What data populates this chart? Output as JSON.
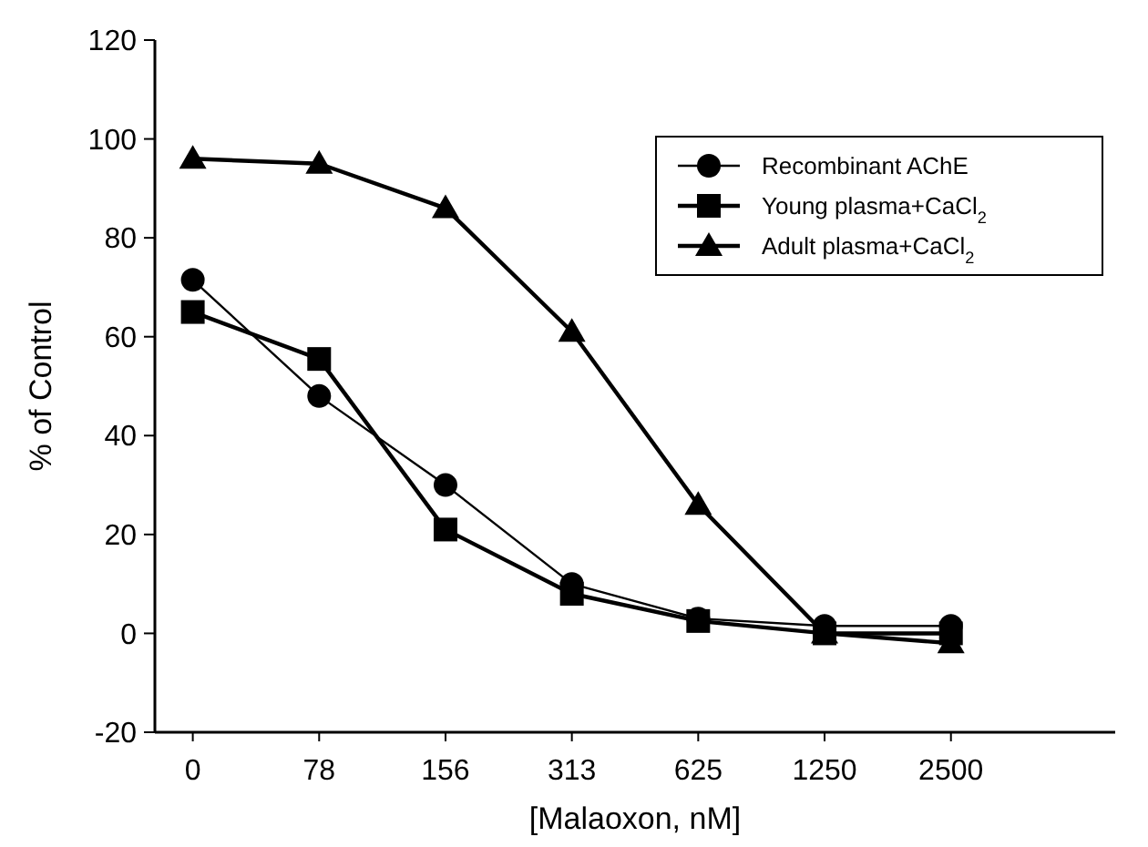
{
  "chart_data": {
    "type": "line",
    "xlabel": "[Malaoxon, nM]",
    "ylabel": "% of Control",
    "categories": [
      "0",
      "78",
      "156",
      "313",
      "625",
      "1250",
      "2500"
    ],
    "ylim": [
      -20,
      120
    ],
    "yticks": [
      -20,
      0,
      20,
      40,
      60,
      80,
      100,
      120
    ],
    "grid": false,
    "legend": "top right",
    "series": [
      {
        "name": "Recombinant AChE",
        "color": "#000000",
        "marker": "circle",
        "values": [
          71.5,
          48,
          30,
          10,
          3,
          1.5,
          1.5
        ]
      },
      {
        "name": "Young plasma+CaCl$_{2}$",
        "color": "#000000",
        "marker": "square",
        "values": [
          65,
          55.5,
          21,
          8,
          2.5,
          0,
          0
        ]
      },
      {
        "name": "Adult plasma+CaCl$_{2}$",
        "color": "#000000",
        "marker": "triangle",
        "values": [
          96,
          95,
          86,
          61,
          26,
          0,
          -2
        ]
      }
    ]
  }
}
